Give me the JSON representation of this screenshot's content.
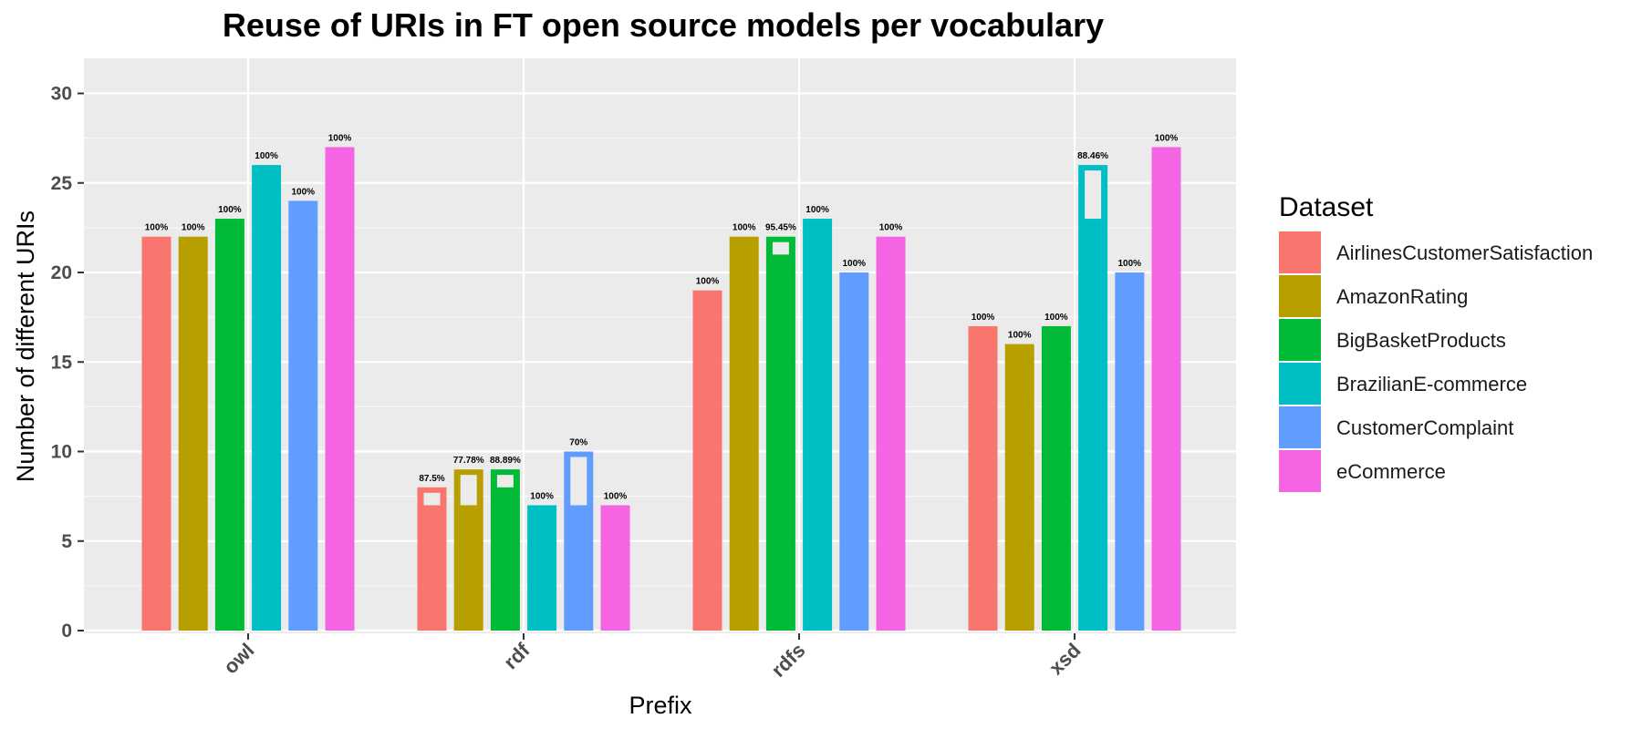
{
  "chart_data": {
    "type": "bar",
    "title": "Reuse of URIs in FT open source models per vocabulary",
    "xlabel": "Prefix",
    "ylabel": "Number of different URIs",
    "ylim": [
      0,
      32
    ],
    "yticks": [
      "0",
      "5",
      "10",
      "15",
      "20",
      "25",
      "30"
    ],
    "categories": [
      "owl",
      "rdf",
      "rdfs",
      "xsd"
    ],
    "legend_title": "Dataset",
    "legend_position": "right",
    "grid": true,
    "colors": {
      "panel": "#EBEBEB",
      "grid_major": "#FFFFFF",
      "reused_marker": "#EBEBEB"
    },
    "series": [
      {
        "name": "AirlinesCustomerSatisfaction",
        "color": "#F8766D",
        "values": [
          22,
          8,
          19,
          17
        ],
        "reused": [
          22,
          7,
          19,
          17
        ],
        "labels": [
          "100%",
          "87.5%",
          "100%",
          "100%"
        ]
      },
      {
        "name": "AmazonRating",
        "color": "#B79F00",
        "values": [
          22,
          9,
          22,
          16
        ],
        "reused": [
          22,
          7,
          22,
          16
        ],
        "labels": [
          "100%",
          "77.78%",
          "100%",
          "100%"
        ]
      },
      {
        "name": "BigBasketProducts",
        "color": "#00BA38",
        "values": [
          23,
          9,
          22,
          17
        ],
        "reused": [
          23,
          8,
          21,
          17
        ],
        "labels": [
          "100%",
          "88.89%",
          "95.45%",
          "100%"
        ]
      },
      {
        "name": "BrazilianE-commerce",
        "color": "#00BFC4",
        "values": [
          26,
          7,
          23,
          26
        ],
        "reused": [
          26,
          7,
          23,
          23
        ],
        "labels": [
          "100%",
          "100%",
          "100%",
          "88.46%"
        ]
      },
      {
        "name": "CustomerComplaint",
        "color": "#619CFF",
        "values": [
          24,
          10,
          20,
          20
        ],
        "reused": [
          24,
          7,
          20,
          20
        ],
        "labels": [
          "100%",
          "70%",
          "100%",
          "100%"
        ]
      },
      {
        "name": "eCommerce",
        "color": "#F564E3",
        "values": [
          27,
          7,
          22,
          27
        ],
        "reused": [
          27,
          7,
          22,
          27
        ],
        "labels": [
          "100%",
          "100%",
          "100%",
          "100%"
        ]
      }
    ]
  }
}
